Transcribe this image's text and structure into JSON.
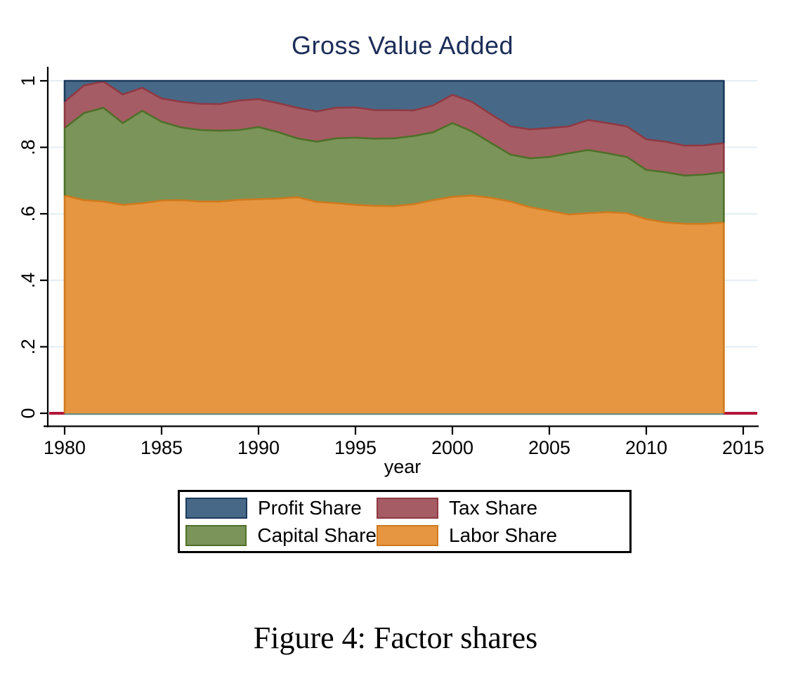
{
  "chart": {
    "title": "Gross Value Added",
    "title_color": "#1b2d58",
    "xlabel": "year",
    "caption": "Figure 4: Factor shares"
  },
  "chart_data": {
    "type": "area",
    "stacked": true,
    "title": "Gross Value Added",
    "xlabel": "year",
    "ylabel": "",
    "xlim": [
      1979.2,
      2015.7
    ],
    "ylim": [
      0,
      1
    ],
    "grid": true,
    "grid_color": "#e4eef3",
    "legend_position": "bottom",
    "xticks": [
      1980,
      1985,
      1990,
      1995,
      2000,
      2005,
      2010,
      2015
    ],
    "yticks": [
      {
        "label": "0",
        "value": 0
      },
      {
        "label": ".2",
        "value": 0.2
      },
      {
        "label": ".4",
        "value": 0.4
      },
      {
        "label": ".6",
        "value": 0.6
      },
      {
        "label": ".8",
        "value": 0.8
      },
      {
        "label": "1",
        "value": 1
      }
    ],
    "x": [
      1980,
      1981,
      1982,
      1983,
      1984,
      1985,
      1986,
      1987,
      1988,
      1989,
      1990,
      1991,
      1992,
      1993,
      1994,
      1995,
      1996,
      1997,
      1998,
      1999,
      2000,
      2001,
      2002,
      2003,
      2004,
      2005,
      2006,
      2007,
      2008,
      2009,
      2010,
      2011,
      2012,
      2013,
      2014
    ],
    "series": [
      {
        "name": "Labor Share",
        "fill": "#e69640",
        "border": "#cf7a1e",
        "values": [
          0.655,
          0.641,
          0.637,
          0.627,
          0.632,
          0.64,
          0.641,
          0.637,
          0.637,
          0.642,
          0.644,
          0.646,
          0.65,
          0.636,
          0.632,
          0.627,
          0.624,
          0.623,
          0.629,
          0.641,
          0.651,
          0.655,
          0.648,
          0.637,
          0.62,
          0.609,
          0.598,
          0.602,
          0.605,
          0.602,
          0.584,
          0.574,
          0.57,
          0.57,
          0.574
        ]
      },
      {
        "name": "Capital Share",
        "fill": "#7b9459",
        "border": "#4e7029",
        "values": [
          0.203,
          0.262,
          0.282,
          0.246,
          0.278,
          0.237,
          0.219,
          0.215,
          0.213,
          0.21,
          0.217,
          0.2,
          0.177,
          0.181,
          0.195,
          0.202,
          0.202,
          0.204,
          0.205,
          0.204,
          0.222,
          0.193,
          0.165,
          0.141,
          0.147,
          0.162,
          0.184,
          0.19,
          0.177,
          0.169,
          0.148,
          0.151,
          0.145,
          0.148,
          0.151
        ]
      },
      {
        "name": "Tax Share",
        "fill": "#a65c64",
        "border": "#8e3a44",
        "values": [
          0.079,
          0.083,
          0.079,
          0.086,
          0.069,
          0.07,
          0.077,
          0.079,
          0.08,
          0.089,
          0.084,
          0.087,
          0.092,
          0.091,
          0.092,
          0.091,
          0.086,
          0.085,
          0.077,
          0.081,
          0.085,
          0.089,
          0.086,
          0.085,
          0.087,
          0.087,
          0.081,
          0.09,
          0.091,
          0.092,
          0.092,
          0.092,
          0.09,
          0.088,
          0.088
        ]
      },
      {
        "name": "Profit Share",
        "fill": "#476987",
        "border": "#1b3a5c",
        "values": [
          0.063,
          0.014,
          0.002,
          0.041,
          0.021,
          0.053,
          0.063,
          0.069,
          0.07,
          0.059,
          0.055,
          0.067,
          0.081,
          0.092,
          0.081,
          0.08,
          0.088,
          0.088,
          0.089,
          0.074,
          0.042,
          0.063,
          0.101,
          0.137,
          0.146,
          0.142,
          0.137,
          0.118,
          0.127,
          0.137,
          0.176,
          0.183,
          0.195,
          0.194,
          0.187
        ]
      }
    ],
    "zero_reference_line_color": "#b2163a",
    "zero_baseline_color": "#6b8a80",
    "axis_color": "#000000"
  },
  "legend": {
    "entries": [
      {
        "label": "Profit Share",
        "series": "Profit Share"
      },
      {
        "label": "Tax Share",
        "series": "Tax Share"
      },
      {
        "label": "Capital Share",
        "series": "Capital Share"
      },
      {
        "label": "Labor Share",
        "series": "Labor Share"
      }
    ]
  }
}
